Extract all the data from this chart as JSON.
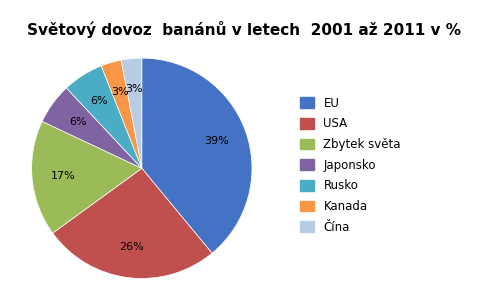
{
  "title": "Světový dovoz  banánů v letech  2001 až 2011 v %",
  "labels": [
    "EU",
    "USA",
    "Zbytek světa",
    "Japonsko",
    "Rusko",
    "Kanada",
    "Čína"
  ],
  "values": [
    39,
    26,
    17,
    6,
    6,
    3,
    3
  ],
  "colors": [
    "#4472C4",
    "#C0504D",
    "#9BBB59",
    "#8064A2",
    "#4BACC6",
    "#F79646",
    "#B8CCE4"
  ],
  "title_fontsize": 11,
  "label_fontsize": 8,
  "legend_fontsize": 8.5,
  "startangle": 90
}
